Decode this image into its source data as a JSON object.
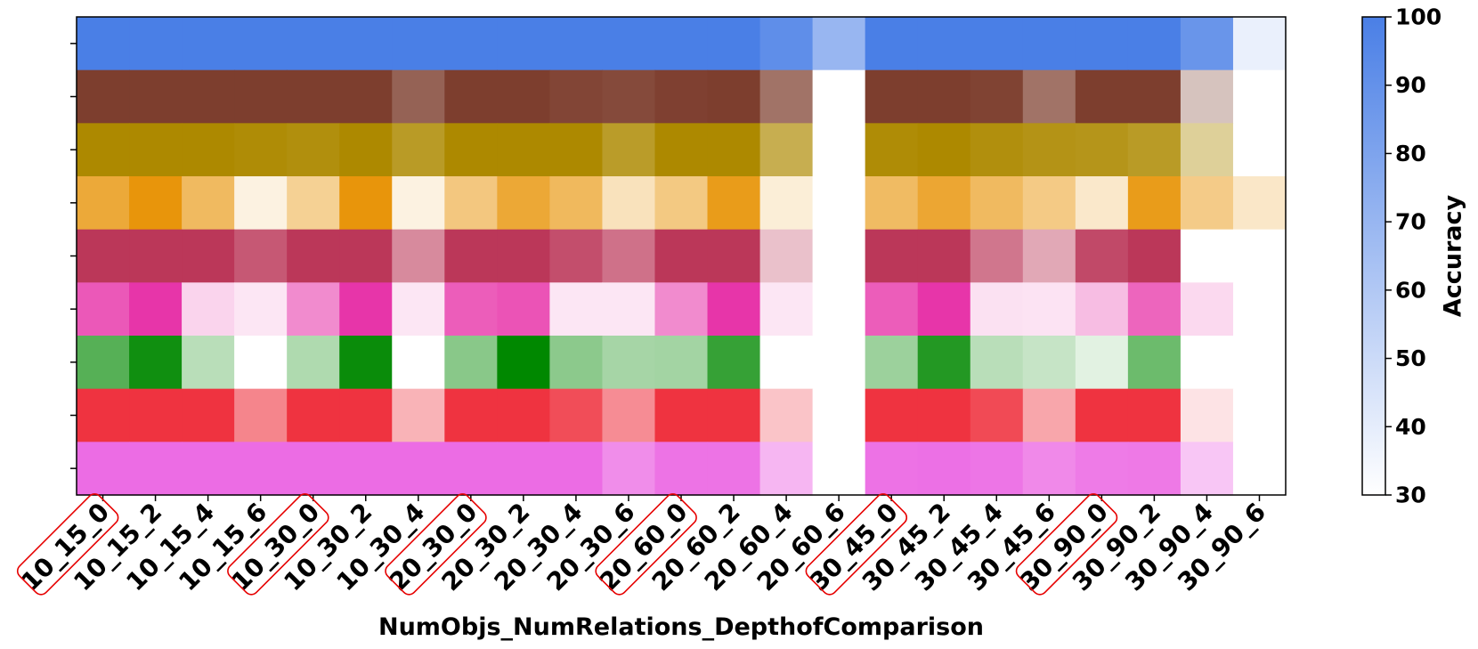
{
  "chart_data": {
    "type": "heatmap",
    "title": "",
    "xlabel": "NumObjs_NumRelations_DepthofComparison",
    "ylabel": "",
    "x_categories": [
      "10_15_0",
      "10_15_2",
      "10_15_4",
      "10_15_6",
      "10_30_0",
      "10_30_2",
      "10_30_4",
      "20_30_0",
      "20_30_2",
      "20_30_4",
      "20_30_6",
      "20_60_0",
      "20_60_2",
      "20_60_4",
      "20_60_6",
      "30_45_0",
      "30_45_2",
      "30_45_4",
      "30_45_6",
      "30_90_0",
      "30_90_2",
      "30_90_4",
      "30_90_6"
    ],
    "highlighted_categories": [
      "10_15_0",
      "10_30_0",
      "20_30_0",
      "20_60_0",
      "30_45_0",
      "30_90_0"
    ],
    "highlight_color": "#e60000",
    "rows": [
      {
        "color": "#4a7fe6",
        "values": [
          100,
          100,
          100,
          100,
          100,
          100,
          100,
          100,
          100,
          100,
          100,
          100,
          100,
          92,
          70,
          100,
          100,
          100,
          100,
          100,
          100,
          88,
          38
        ]
      },
      {
        "color": "#7d3e2e",
        "values": [
          100,
          100,
          100,
          100,
          100,
          100,
          85,
          100,
          100,
          97,
          95,
          99,
          100,
          78,
          20,
          100,
          100,
          98,
          78,
          100,
          100,
          45,
          20
        ]
      },
      {
        "color": "#ad8900",
        "values": [
          100,
          100,
          100,
          98,
          96,
          100,
          88,
          100,
          100,
          100,
          87,
          100,
          100,
          75,
          20,
          98,
          100,
          96,
          93,
          92,
          88,
          52,
          20
        ]
      },
      {
        "color": "#e8950b",
        "values": [
          85,
          100,
          72,
          30,
          55,
          100,
          30,
          62,
          86,
          73,
          42,
          61,
          95,
          33,
          20,
          71,
          87,
          72,
          60,
          37,
          95,
          59,
          38
        ]
      },
      {
        "color": "#bb3759",
        "values": [
          100,
          100,
          100,
          87,
          100,
          100,
          67,
          100,
          100,
          91,
          77,
          100,
          100,
          45,
          20,
          100,
          100,
          75,
          55,
          93,
          100,
          20,
          20
        ]
      },
      {
        "color": "#e735a9",
        "values": [
          86,
          100,
          37,
          30,
          66,
          100,
          30,
          84,
          88,
          30,
          30,
          66,
          100,
          30,
          20,
          84,
          100,
          32,
          31,
          46,
          81,
          35,
          20
        ]
      },
      {
        "color": "#008800",
        "values": [
          73,
          95,
          42,
          17,
          45,
          97,
          9,
          57,
          100,
          56,
          48,
          49,
          83,
          8,
          0,
          51,
          89,
          42,
          38,
          29,
          66,
          12,
          0
        ]
      },
      {
        "color": "#ef3340",
        "values": [
          100,
          100,
          100,
          68,
          100,
          100,
          50,
          100,
          100,
          90,
          65,
          100,
          100,
          43,
          20,
          100,
          100,
          91,
          55,
          100,
          100,
          31,
          20
        ]
      },
      {
        "color": "#ec6ce4",
        "values": [
          100,
          100,
          100,
          100,
          100,
          100,
          100,
          100,
          100,
          100,
          82,
          96,
          96,
          60,
          5,
          97,
          98,
          95,
          84,
          92,
          93,
          51,
          0
        ]
      }
    ],
    "colorbar": {
      "label": "Accuracy",
      "vmin": 30,
      "vmax": 100,
      "ticks": [
        "30",
        "40",
        "50",
        "60",
        "70",
        "80",
        "90",
        "100"
      ],
      "color_low": "#ffffff",
      "color_high": "#4a7fe6"
    }
  }
}
